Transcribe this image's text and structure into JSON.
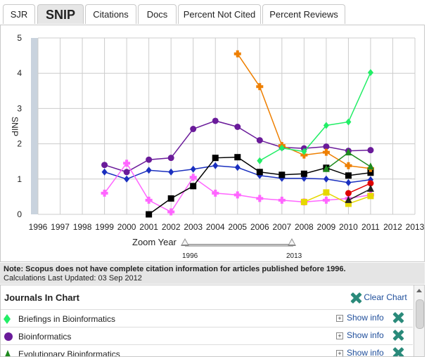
{
  "tabs": [
    {
      "label": "SJR",
      "active": false
    },
    {
      "label": "SNIP",
      "active": true
    },
    {
      "label": "Citations",
      "active": false
    },
    {
      "label": "Docs",
      "active": false
    },
    {
      "label": "Percent Not Cited",
      "active": false
    },
    {
      "label": "Percent Reviews",
      "active": false
    }
  ],
  "chart_data": {
    "type": "line",
    "ylabel": "SNIP",
    "ylim": [
      0,
      5
    ],
    "yticks": [
      0,
      1,
      2,
      3,
      4,
      5
    ],
    "xlim": [
      1996,
      2013
    ],
    "xticks": [
      1996,
      1997,
      1998,
      1999,
      2000,
      2001,
      2002,
      2003,
      2004,
      2005,
      2006,
      2007,
      2008,
      2009,
      2010,
      2011,
      2012,
      2013
    ],
    "series": [
      {
        "name": "Bioinformatics",
        "color": "#6a1b9a",
        "marker": "circle",
        "x": [
          1999,
          2000,
          2001,
          2002,
          2003,
          2004,
          2005,
          2006,
          2007,
          2008,
          2009,
          2010,
          2011
        ],
        "y": [
          1.4,
          1.2,
          1.55,
          1.6,
          2.42,
          2.65,
          2.48,
          2.1,
          1.9,
          1.87,
          1.92,
          1.8,
          1.82
        ]
      },
      {
        "color": "#1a2fbf",
        "marker": "diamond",
        "x": [
          1999,
          2000,
          2001,
          2002,
          2003,
          2004,
          2005,
          2006,
          2007,
          2008,
          2009,
          2010,
          2011
        ],
        "y": [
          1.2,
          1.0,
          1.25,
          1.2,
          1.28,
          1.38,
          1.33,
          1.1,
          1.02,
          1.02,
          1.0,
          0.9,
          0.98
        ]
      },
      {
        "color": "#ff66ff",
        "marker": "plus",
        "x": [
          1999,
          2000,
          2001,
          2002,
          2003,
          2004,
          2005,
          2006,
          2007,
          2008,
          2009,
          2010,
          2011
        ],
        "y": [
          0.6,
          1.45,
          0.4,
          0.07,
          1.05,
          0.6,
          0.55,
          0.45,
          0.4,
          0.35,
          0.4,
          0.45,
          0.55
        ]
      },
      {
        "color": "#000000",
        "marker": "square",
        "x": [
          2001,
          2002,
          2003,
          2004,
          2005,
          2006,
          2007,
          2008,
          2009,
          2010,
          2011
        ],
        "y": [
          0.0,
          0.45,
          0.8,
          1.6,
          1.62,
          1.2,
          1.12,
          1.15,
          1.32,
          1.1,
          1.18
        ]
      },
      {
        "color": "#ee7f00",
        "marker": "plus",
        "x": [
          2005,
          2006,
          2007,
          2008,
          2009,
          2010,
          2011
        ],
        "y": [
          4.55,
          3.62,
          1.95,
          1.68,
          1.76,
          1.38,
          1.3
        ]
      },
      {
        "name": "Briefings in Bioinformatics",
        "color": "#22ee66",
        "marker": "diamond",
        "x": [
          2006,
          2007,
          2008,
          2009,
          2010,
          2011
        ],
        "y": [
          1.52,
          1.88,
          1.78,
          2.52,
          2.62,
          4.02
        ]
      },
      {
        "name": "Evolutionary Bioinformatics",
        "color": "#1f8a1f",
        "marker": "triangle",
        "x": [
          2009,
          2010,
          2011
        ],
        "y": [
          1.28,
          1.75,
          1.35
        ]
      },
      {
        "color": "#e6d800",
        "marker": "square",
        "x": [
          2008,
          2009,
          2010,
          2011
        ],
        "y": [
          0.35,
          0.62,
          0.3,
          0.52
        ]
      },
      {
        "color": "#e00000",
        "marker": "circle",
        "x": [
          2010,
          2011
        ],
        "y": [
          0.6,
          0.88
        ]
      },
      {
        "color": "#222222",
        "marker": "triangle",
        "x": [
          2010,
          2011
        ],
        "y": [
          0.4,
          0.72
        ]
      }
    ]
  },
  "zoom": {
    "label": "Zoom Year",
    "start": "1996",
    "end": "2013"
  },
  "note": {
    "bold": "Note: Scopus does not have complete citation information for articles published before 1996.",
    "updated": "Calculations Last Updated: 03 Sep 2012"
  },
  "panel": {
    "title": "Journals In Chart",
    "clear_label": "Clear Chart",
    "show_info_label": "Show info",
    "journals": [
      {
        "name": "Briefings in Bioinformatics",
        "color": "#22ee66",
        "marker": "diamond"
      },
      {
        "name": "Bioinformatics",
        "color": "#6a1b9a",
        "marker": "circle"
      },
      {
        "name": "Evolutionary Bioinformatics",
        "color": "#1f8a1f",
        "marker": "triangle"
      }
    ]
  }
}
